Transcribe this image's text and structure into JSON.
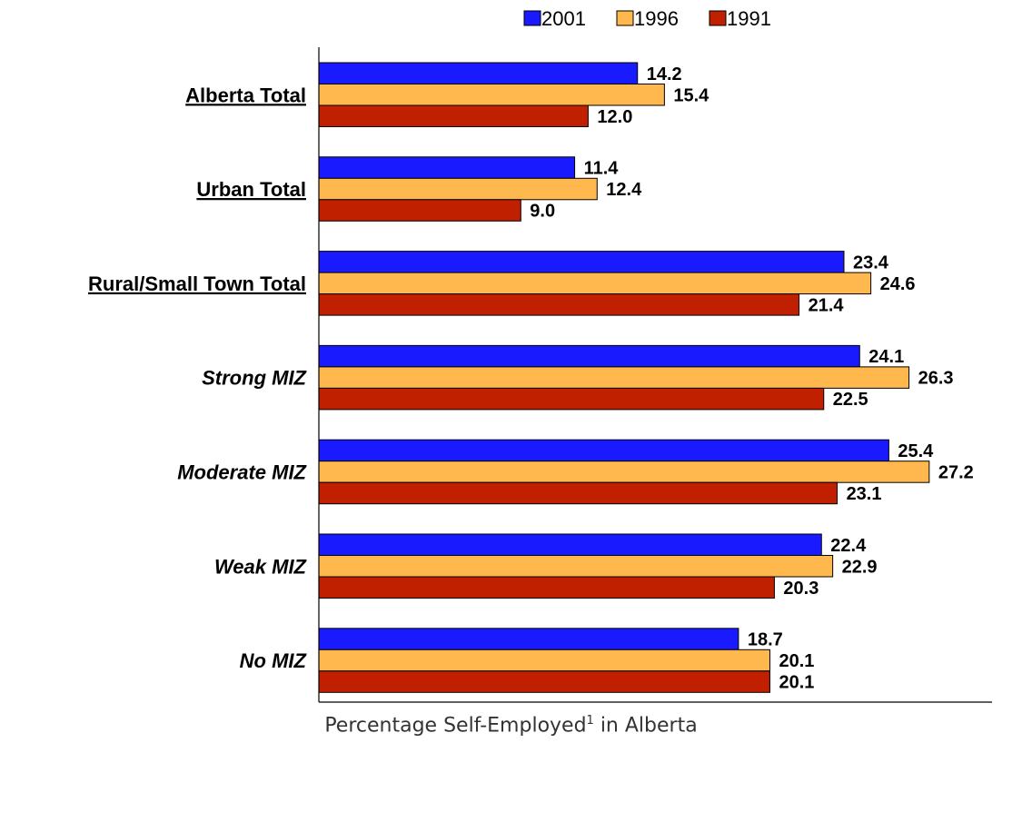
{
  "chart_data": {
    "type": "bar",
    "orientation": "horizontal",
    "categories": [
      {
        "label": "Alberta Total",
        "style": "underline"
      },
      {
        "label": "Urban Total",
        "style": "underline"
      },
      {
        "label": "Rural/Small Town Total",
        "style": "underline"
      },
      {
        "label": "Strong MIZ",
        "style": "italic"
      },
      {
        "label": "Moderate MIZ",
        "style": "italic"
      },
      {
        "label": "Weak MIZ",
        "style": "italic"
      },
      {
        "label": "No MIZ",
        "style": "italic"
      }
    ],
    "series": [
      {
        "name": "2001",
        "color": "#1a1aff",
        "values": [
          14.2,
          11.4,
          23.4,
          24.1,
          25.4,
          22.4,
          18.7
        ]
      },
      {
        "name": "1996",
        "color": "#ffb84d",
        "values": [
          15.4,
          12.4,
          24.6,
          26.3,
          27.2,
          22.9,
          20.1
        ]
      },
      {
        "name": "1991",
        "color": "#c01f00",
        "values": [
          12.0,
          9.0,
          21.4,
          22.5,
          23.1,
          20.3,
          20.1
        ]
      }
    ],
    "xlim": [
      0,
      30
    ],
    "xticks": [
      "0.0",
      "5.0",
      "10.0",
      "15.0",
      "20.0",
      "25.0",
      "30.0"
    ],
    "legend_position": "top",
    "grid": false
  },
  "caption": {
    "text": "Percentage Self-Employed",
    "footnote_mark": "1",
    "suffix": " in Alberta"
  }
}
